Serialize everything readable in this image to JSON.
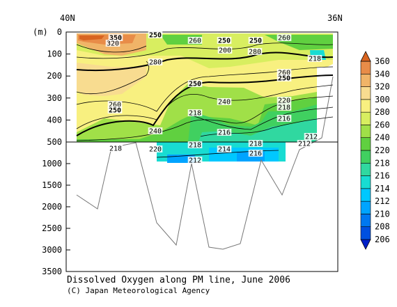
{
  "chart_data": {
    "type": "heatmap",
    "title": "Dissolved Oxygen along PM line, June 2006",
    "credit": "(C) Japan Meteorological Agency",
    "top_labels": [
      "40N",
      "36N"
    ],
    "ylabel": "(m)",
    "y_ticks": [
      "0",
      "100",
      "200",
      "300",
      "400",
      "500",
      "1000",
      "1500",
      "2000",
      "2500",
      "3000",
      "3500"
    ],
    "ylim": [
      0,
      3500
    ],
    "y_break": 500,
    "colorbar": {
      "levels": [
        "206",
        "208",
        "210",
        "212",
        "214",
        "216",
        "218",
        "220",
        "240",
        "260",
        "280",
        "300",
        "320",
        "340",
        "360"
      ],
      "colors": [
        "#0020c8",
        "#0050e0",
        "#0078f0",
        "#00a4ff",
        "#00c8ff",
        "#18dcd2",
        "#30d8a0",
        "#40d060",
        "#60d040",
        "#a0e048",
        "#d8ee60",
        "#f8f080",
        "#f8dc90",
        "#f0b468",
        "#e88c48",
        "#d86420"
      ]
    },
    "contour_labels": [
      "350",
      "320",
      "250",
      "260",
      "250",
      "250",
      "260",
      "200",
      "280",
      "218",
      "280",
      "260",
      "250",
      "250",
      "260",
      "250",
      "240",
      "220",
      "218",
      "218",
      "216",
      "240",
      "216",
      "218",
      "218",
      "214",
      "218",
      "216",
      "220",
      "212",
      "212",
      "212"
    ]
  }
}
